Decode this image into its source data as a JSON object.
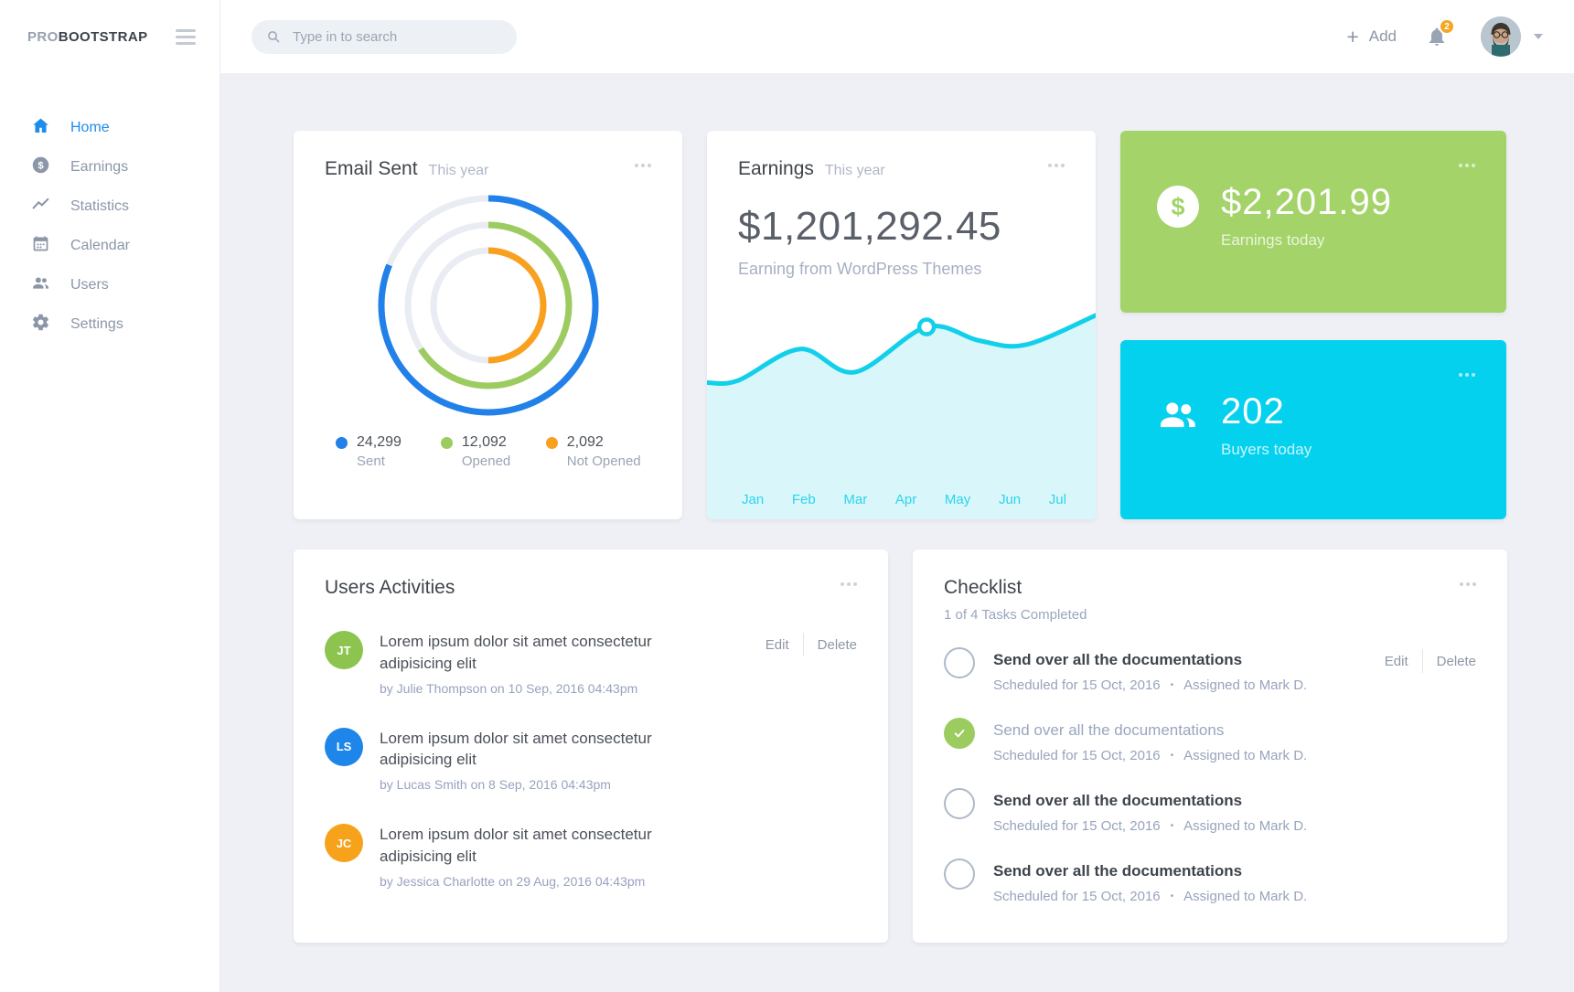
{
  "brand": {
    "light": "PRO",
    "bold": "BOOTSTRAP"
  },
  "topbar": {
    "search_placeholder": "Type in to search",
    "add_label": "Add",
    "notification_count": "2"
  },
  "sidebar": {
    "active_color": "#1f8ceb",
    "inactive_color": "#8b96a8",
    "items": [
      {
        "label": "Home",
        "icon": "home-icon",
        "active": true
      },
      {
        "label": "Earnings",
        "icon": "dollar-circle-icon",
        "active": false
      },
      {
        "label": "Statistics",
        "icon": "chart-line-icon",
        "active": false
      },
      {
        "label": "Calendar",
        "icon": "calendar-icon",
        "active": false
      },
      {
        "label": "Users",
        "icon": "users-icon",
        "active": false
      },
      {
        "label": "Settings",
        "icon": "gear-icon",
        "active": false
      }
    ]
  },
  "email_sent": {
    "title": "Email Sent",
    "subtitle": "This year",
    "legend": [
      {
        "value": "24,299",
        "label": "Sent",
        "color": "#2181e8"
      },
      {
        "value": "12,092",
        "label": "Opened",
        "color": "#9ccb60"
      },
      {
        "value": "2,092",
        "label": "Not Opened",
        "color": "#f9a11f"
      }
    ]
  },
  "earnings": {
    "title": "Earnings",
    "subtitle": "This year",
    "amount": "$1,201,292.45",
    "description": "Earning from WordPress Themes",
    "months": [
      "Jan",
      "Feb",
      "Mar",
      "Apr",
      "May",
      "Jun",
      "Jul"
    ]
  },
  "earnings_today": {
    "amount": "$2,201.99",
    "label": "Earnings today",
    "bg_color": "#a3d369"
  },
  "buyers_today": {
    "count": "202",
    "label": "Buyers today",
    "bg_color": "#04d1ee"
  },
  "users_activities": {
    "title": "Users Activities",
    "edit_label": "Edit",
    "delete_label": "Delete",
    "items": [
      {
        "initials": "JT",
        "avatar_color": "#8dc44f",
        "text": "Lorem ipsum dolor sit amet consectetur adipisicing elit",
        "meta": "by Julie Thompson on 10 Sep, 2016 04:43pm"
      },
      {
        "initials": "LS",
        "avatar_color": "#1e86e8",
        "text": "Lorem ipsum dolor sit amet consectetur adipisicing elit",
        "meta": "by Lucas Smith on 8 Sep, 2016 04:43pm"
      },
      {
        "initials": "JC",
        "avatar_color": "#f7a21b",
        "text": "Lorem ipsum dolor sit amet consectetur adipisicing elit",
        "meta": "by Jessica Charlotte on 29 Aug, 2016 04:43pm"
      }
    ]
  },
  "checklist": {
    "title": "Checklist",
    "subtitle": "1 of 4 Tasks Completed",
    "edit_label": "Edit",
    "delete_label": "Delete",
    "done_color": "#9ccb60",
    "separator": "•",
    "items": [
      {
        "title": "Send over all the documentations",
        "scheduled": "Scheduled for 15 Oct, 2016",
        "assigned": "Assigned to Mark D.",
        "completed": false
      },
      {
        "title": "Send over all the documentations",
        "scheduled": "Scheduled for 15 Oct, 2016",
        "assigned": "Assigned to Mark D.",
        "completed": true
      },
      {
        "title": "Send over all the documentations",
        "scheduled": "Scheduled for 15 Oct, 2016",
        "assigned": "Assigned to Mark D.",
        "completed": false
      },
      {
        "title": "Send over all the documentations",
        "scheduled": "Scheduled for 15 Oct, 2016",
        "assigned": "Assigned to Mark D.",
        "completed": false
      }
    ]
  },
  "chart_data": [
    {
      "type": "donut",
      "title": "Email Sent This year",
      "track_color": "#e9ecf2",
      "legend_position": "bottom",
      "series": [
        {
          "name": "Sent",
          "value": 24299,
          "color": "#2181e8",
          "sweep_deg": 292
        },
        {
          "name": "Opened",
          "value": 12092,
          "color": "#9ccb60",
          "sweep_deg": 237
        },
        {
          "name": "Not Opened",
          "value": 2092,
          "color": "#f9a11f",
          "sweep_deg": 180
        }
      ]
    },
    {
      "type": "area",
      "title": "Earnings This year",
      "x_labels": [
        "Jan",
        "Feb",
        "Mar",
        "Apr",
        "May",
        "Jun",
        "Jul"
      ],
      "line_color": "#12d0ea",
      "fill_color": "#d9f6fb",
      "label_color": "#2bd5ec",
      "points": [
        [
          0,
          0.35
        ],
        [
          0.08,
          0.34
        ],
        [
          0.24,
          0.19
        ],
        [
          0.38,
          0.3
        ],
        [
          0.565,
          0.085
        ],
        [
          0.7,
          0.15
        ],
        [
          0.82,
          0.17
        ],
        [
          1,
          0.03
        ]
      ],
      "marker_index": 4
    }
  ]
}
